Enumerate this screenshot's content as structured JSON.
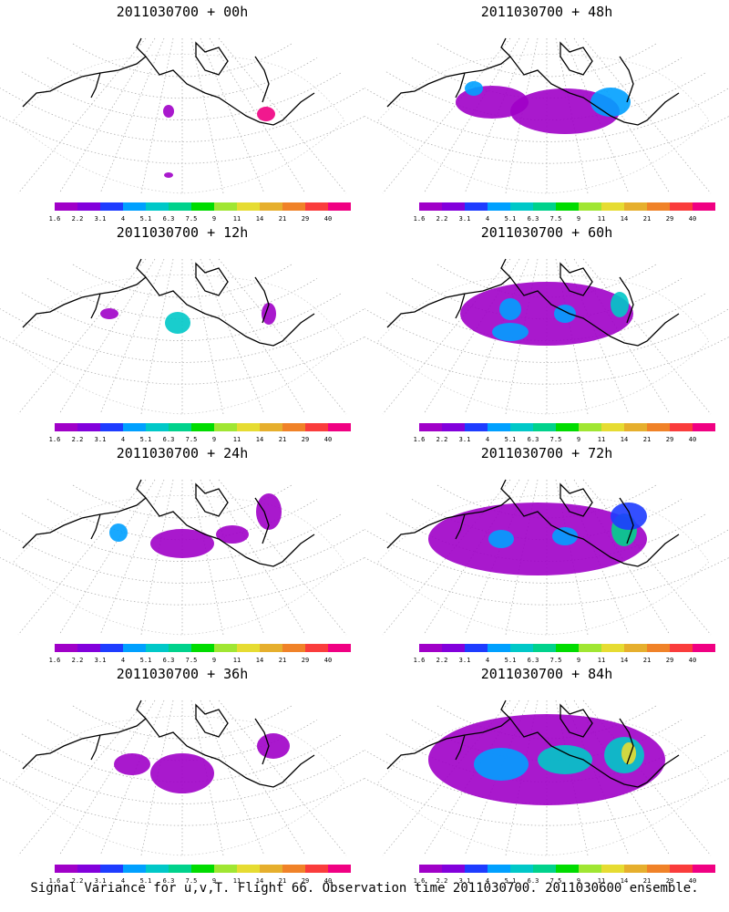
{
  "panels": [
    {
      "title": "2011030700 + 00h"
    },
    {
      "title": "2011030700 + 48h"
    },
    {
      "title": "2011030700 + 12h"
    },
    {
      "title": "2011030700 + 60h"
    },
    {
      "title": "2011030700 + 24h"
    },
    {
      "title": "2011030700 + 72h"
    },
    {
      "title": "2011030700 + 36h"
    },
    {
      "title": "2011030700 + 84h"
    }
  ],
  "colorbar": {
    "labels": [
      "1.6",
      "2.2",
      "3.1",
      "4",
      "5.1",
      "6.3",
      "7.5",
      "9",
      "11",
      "14",
      "21",
      "29",
      "40"
    ],
    "colors": [
      "#a000c8",
      "#8200dc",
      "#1e3cff",
      "#00a0ff",
      "#00c8c8",
      "#00d28c",
      "#00dc00",
      "#a0e632",
      "#e6dc32",
      "#e6af2d",
      "#f08228",
      "#fa3c3c",
      "#f00082"
    ]
  },
  "footer": "Signal Variance for u,v,T. Flight 66. Observation time 2011030700. 2011030600 ensemble."
}
